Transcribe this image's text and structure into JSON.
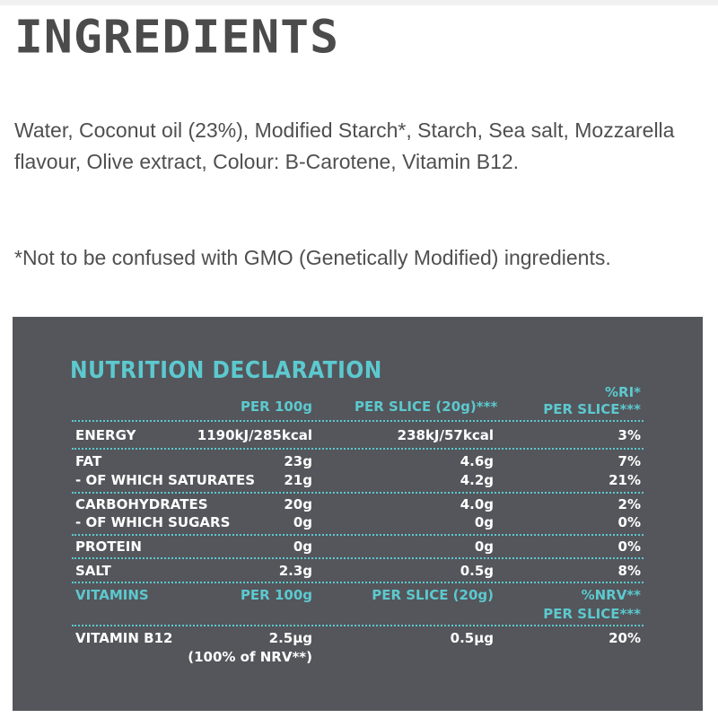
{
  "heading": "INGREDIENTS",
  "ingredients_text": "Water, Coconut oil (23%), Modified Starch*, Starch, Sea salt, Mozzarella flavour, Olive extract, Colour: B-Carotene, Vitamin B12.",
  "gmo_note": "*Not to be confused with GMO (Genetically Modified) ingredients.",
  "nutrition": {
    "title": "NUTRITION DECLARATION",
    "headers": {
      "per100": "PER 100g",
      "perslice": "PER SLICE (20g)***",
      "ri_line1": "%RI*",
      "ri_line2": "PER SLICE***"
    },
    "rows": {
      "energy": {
        "label": "ENERGY",
        "per100": "1190kJ/285kcal",
        "perslice": "238kJ/57kcal",
        "ri": "3%"
      },
      "fat": {
        "label": "FAT",
        "per100": "23g",
        "perslice": "4.6g",
        "ri": "7%"
      },
      "saturates": {
        "label": "- OF WHICH SATURATES",
        "per100": "21g",
        "perslice": "4.2g",
        "ri": "21%"
      },
      "carbs": {
        "label": "CARBOHYDRATES",
        "per100": "20g",
        "perslice": "4.0g",
        "ri": "2%"
      },
      "sugars": {
        "label": "- OF WHICH SUGARS",
        "per100": "0g",
        "perslice": "0g",
        "ri": "0%"
      },
      "protein": {
        "label": "PROTEIN",
        "per100": "0g",
        "perslice": "0g",
        "ri": "0%"
      },
      "salt": {
        "label": "SALT",
        "per100": "2.3g",
        "perslice": "0.5g",
        "ri": "8%"
      }
    },
    "vitamins_header": {
      "label": "VITAMINS",
      "per100": "PER 100g",
      "perslice": "PER SLICE (20g)",
      "nrv_line1": "%NRV**",
      "nrv_line2": "PER SLICE***"
    },
    "vitamin_b12": {
      "label": "VITAMIN B12",
      "per100": "2.5µg",
      "per100_note": "(100% of NRV**)",
      "perslice": "0.5µg",
      "nrv": "20%"
    }
  },
  "colors": {
    "panel_bg": "#54565b",
    "accent_teal": "#5cc9cf",
    "text_gray": "#4f4f4f"
  }
}
